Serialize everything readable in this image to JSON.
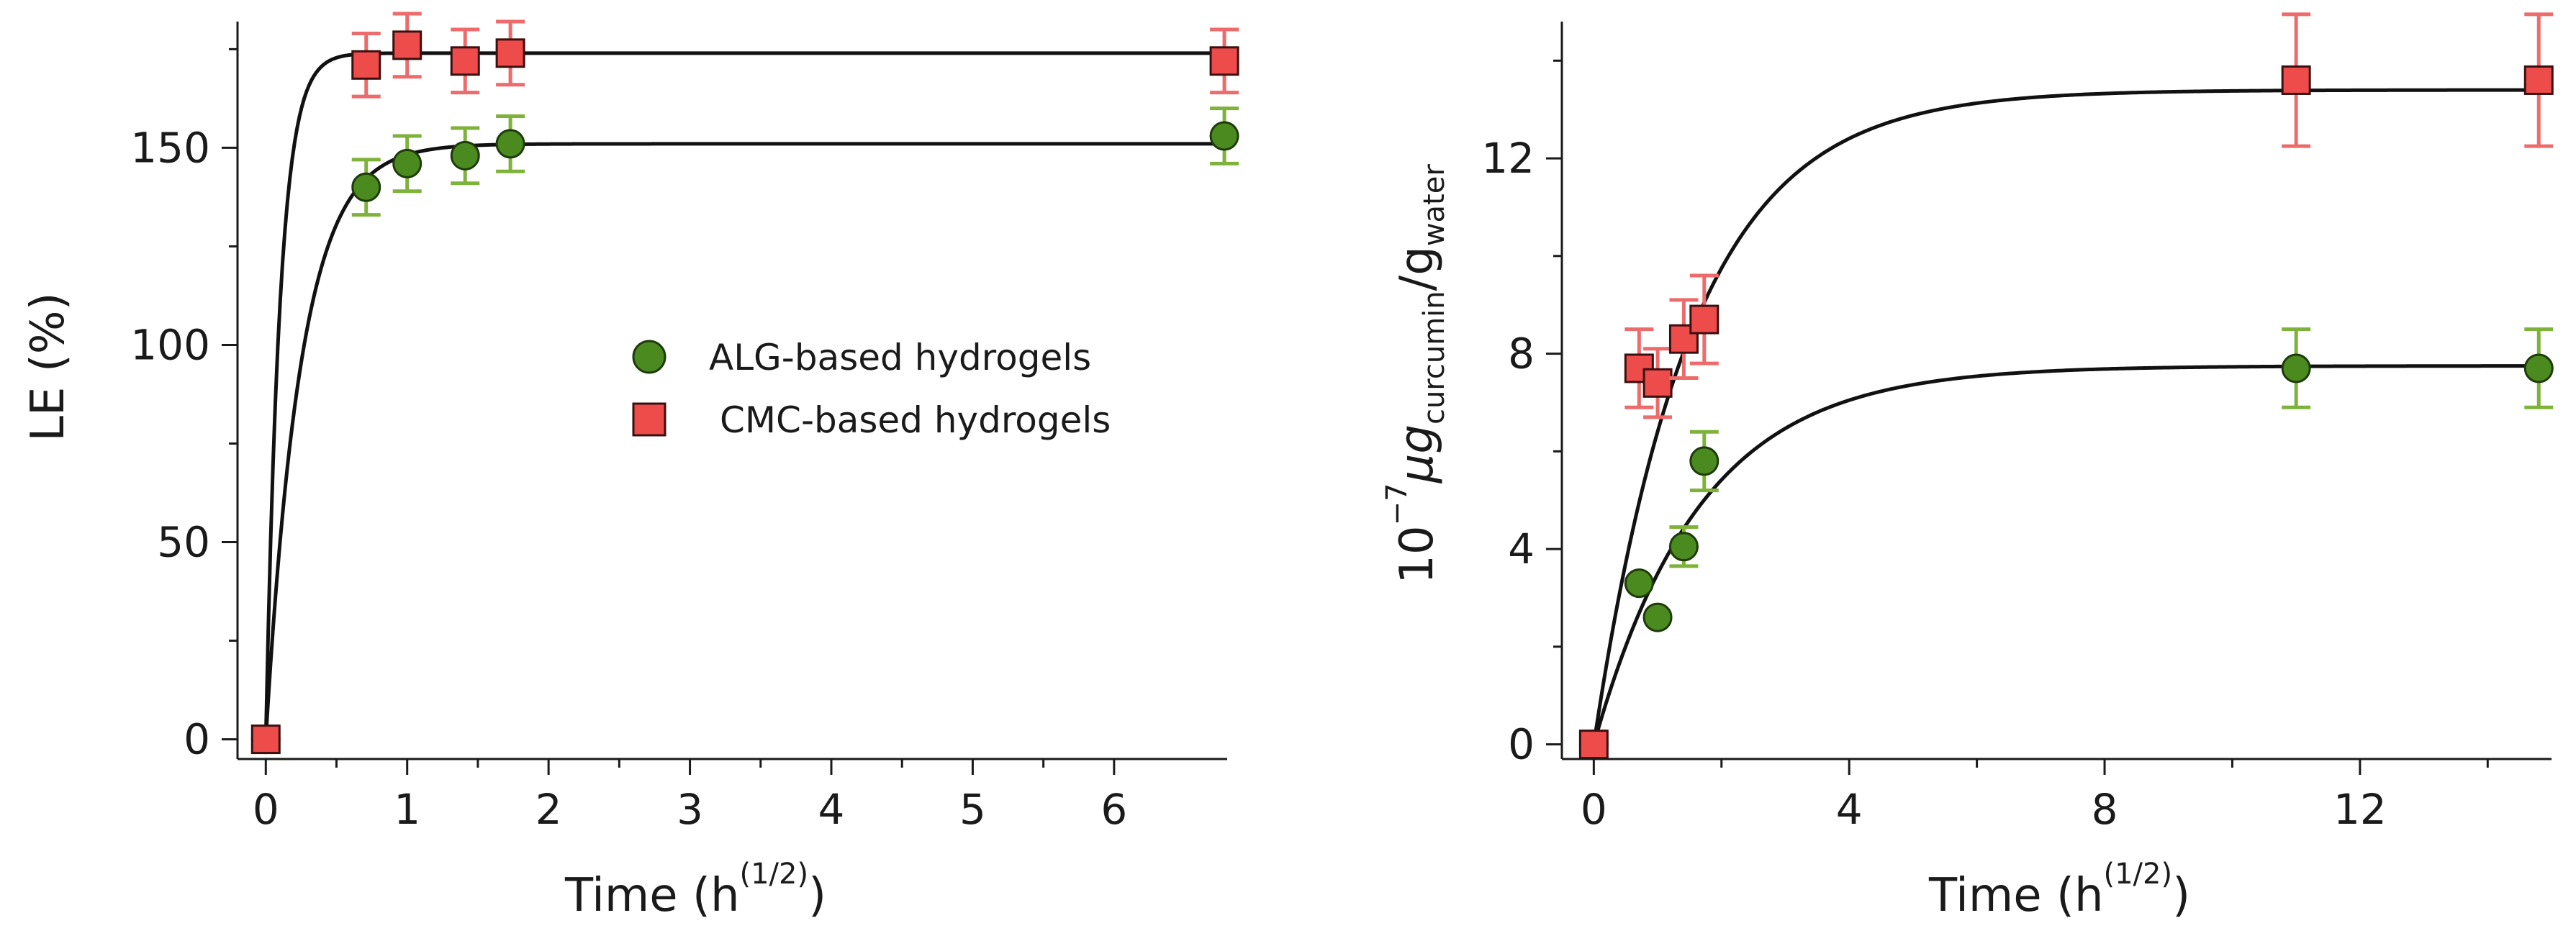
{
  "chart_data": [
    {
      "type": "scatter",
      "panel": "left",
      "title": "",
      "xlabel": "Time",
      "xlabel_unit": "h",
      "xlabel_unit_power": "(1/2)",
      "ylabel": "LE (%)",
      "xlim": [
        -0.2,
        6.8
      ],
      "ylim": [
        -5,
        182
      ],
      "xticks": [
        0,
        1,
        2,
        3,
        4,
        5,
        6
      ],
      "yticks": [
        0,
        50,
        100,
        150
      ],
      "series": [
        {
          "name": "ALG-based hydrogels",
          "marker": "circle",
          "color": "#4a8a1f",
          "error_color": "#7fb23a",
          "points": [
            {
              "x": 0,
              "y": 0,
              "err": 0
            },
            {
              "x": 0.71,
              "y": 140,
              "err": 7
            },
            {
              "x": 1.0,
              "y": 146,
              "err": 7
            },
            {
              "x": 1.41,
              "y": 148,
              "err": 7
            },
            {
              "x": 1.73,
              "y": 151,
              "err": 7
            },
            {
              "x": 6.78,
              "y": 153,
              "err": 7
            }
          ],
          "fit": {
            "plateau": 151,
            "rate": 4.0
          }
        },
        {
          "name": "CMC-based hydrogels",
          "marker": "square",
          "color": "#ee4b4b",
          "error_color": "#ee6b6b",
          "points": [
            {
              "x": 0,
              "y": 0,
              "err": 0
            },
            {
              "x": 0.71,
              "y": 171,
              "err": 8
            },
            {
              "x": 1.0,
              "y": 176,
              "err": 8
            },
            {
              "x": 1.41,
              "y": 172,
              "err": 8
            },
            {
              "x": 1.73,
              "y": 174,
              "err": 8
            },
            {
              "x": 6.78,
              "y": 172,
              "err": 8
            }
          ],
          "fit": {
            "plateau": 174,
            "rate": 10.0
          }
        }
      ],
      "legend": {
        "placement": "center-right"
      }
    },
    {
      "type": "scatter",
      "panel": "right",
      "title": "",
      "xlabel": "Time",
      "xlabel_unit": "h",
      "xlabel_unit_power": "(1/2)",
      "ylabel_prefix": "10",
      "ylabel_power": "−7",
      "ylabel_mu": "μg",
      "ylabel_sub1": "curcumin",
      "ylabel_slash": "/g",
      "ylabel_sub2": "water",
      "xlim": [
        -0.5,
        15
      ],
      "ylim": [
        -0.3,
        14.8
      ],
      "xticks": [
        0,
        4,
        8,
        12
      ],
      "yticks": [
        0,
        4,
        8,
        12
      ],
      "series": [
        {
          "name": "ALG-based hydrogels",
          "marker": "circle",
          "color": "#4a8a1f",
          "error_color": "#7fb23a",
          "points": [
            {
              "x": 0,
              "y": 0,
              "err": 0
            },
            {
              "x": 0.71,
              "y": 3.3,
              "err": 0
            },
            {
              "x": 1.0,
              "y": 2.6,
              "err": 0
            },
            {
              "x": 1.41,
              "y": 4.05,
              "err": 0.4
            },
            {
              "x": 1.73,
              "y": 5.8,
              "err": 0.6
            },
            {
              "x": 11.0,
              "y": 7.7,
              "err": 0.8
            },
            {
              "x": 14.8,
              "y": 7.7,
              "err": 0.8
            }
          ],
          "fit": {
            "plateau": 7.75,
            "rate": 0.6
          }
        },
        {
          "name": "CMC-based hydrogels",
          "marker": "square",
          "color": "#ee4b4b",
          "error_color": "#ee6b6b",
          "points": [
            {
              "x": 0,
              "y": 0,
              "err": 0
            },
            {
              "x": 0.71,
              "y": 7.7,
              "err": 0.8
            },
            {
              "x": 1.0,
              "y": 7.4,
              "err": 0.7
            },
            {
              "x": 1.41,
              "y": 8.3,
              "err": 0.8
            },
            {
              "x": 1.73,
              "y": 8.7,
              "err": 0.9
            },
            {
              "x": 11.0,
              "y": 13.6,
              "err": 1.35
            },
            {
              "x": 14.8,
              "y": 13.6,
              "err": 1.35
            }
          ],
          "fit": {
            "plateau": 13.4,
            "rate": 0.65
          }
        }
      ]
    }
  ]
}
